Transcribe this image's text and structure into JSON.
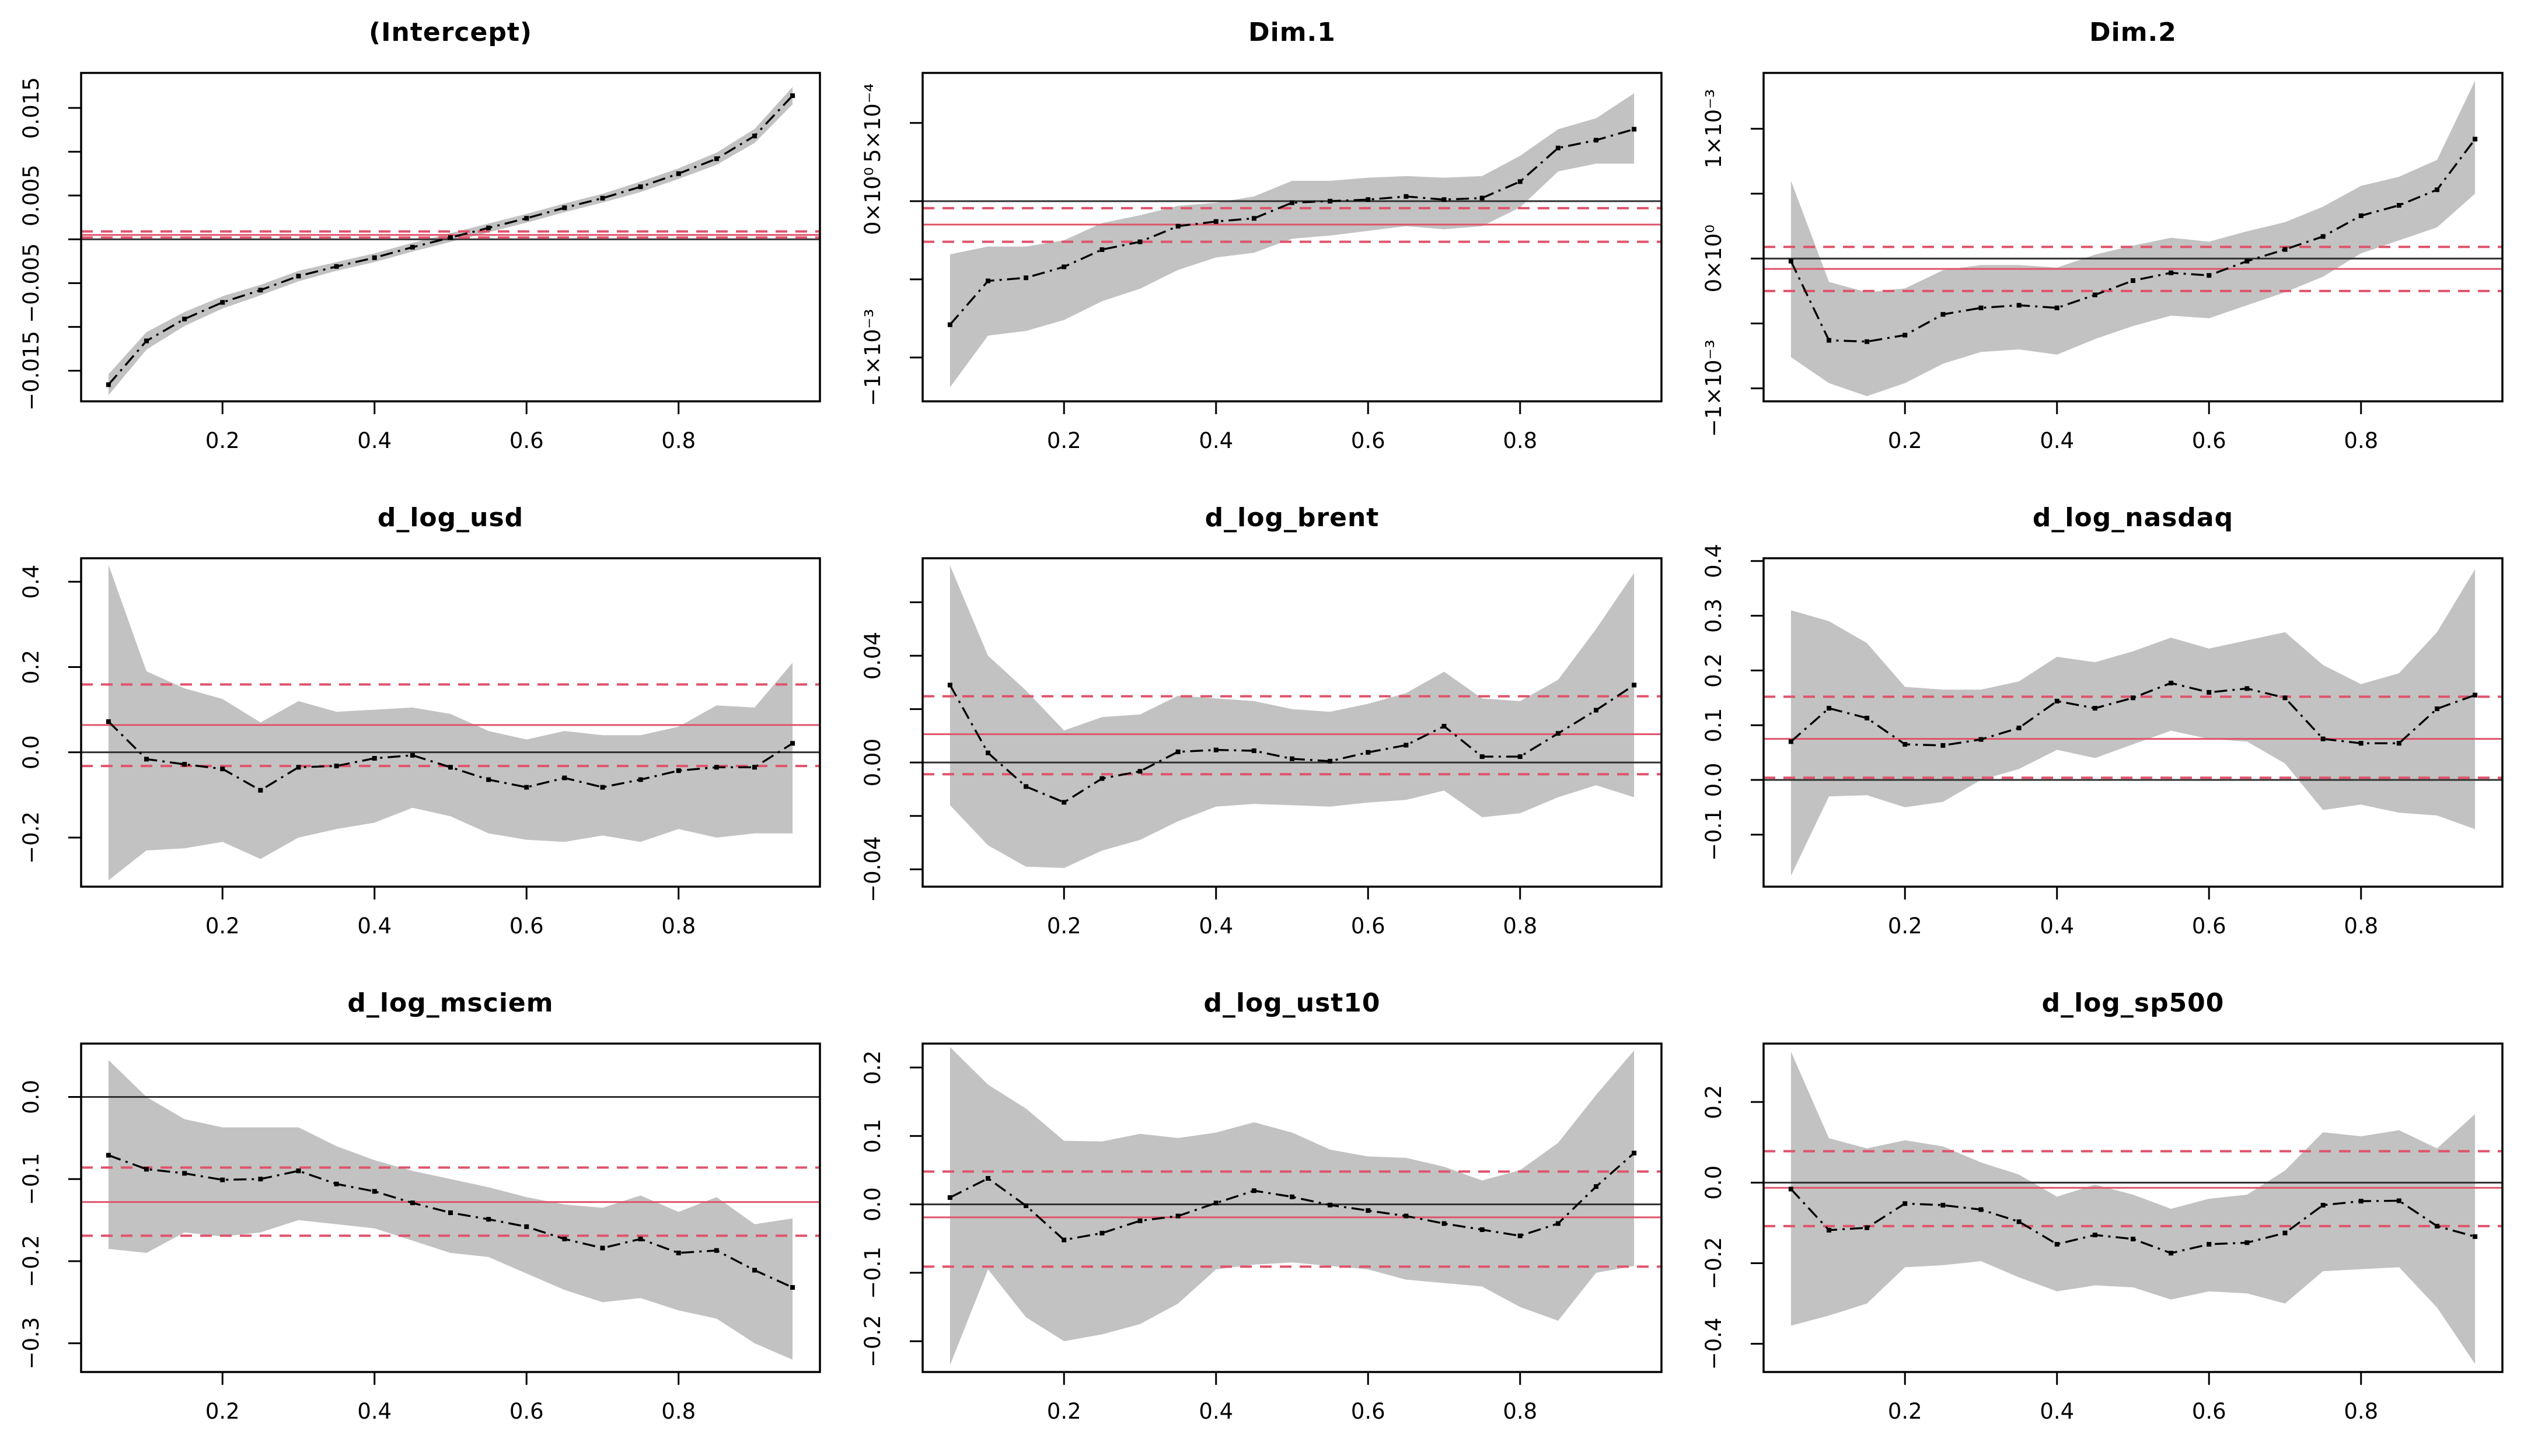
{
  "figure": {
    "background": "#ffffff",
    "grid": {
      "rows": 3,
      "cols": 3
    }
  },
  "style": {
    "band_color": "#c2c2c2",
    "curve_color": "#000000",
    "point_color": "#000000",
    "zero_line_color": "#303030",
    "ols_line_color": "#df536b",
    "ci_line_color": "#df536b",
    "axis_color": "#000000",
    "tick_label_color": "#000000",
    "title_color": "#000000"
  },
  "chart_data": {
    "type": "line",
    "description": "3x3 grid of quantile-regression coefficient plots: black dash-dot quantile estimates with gray confidence bands, black zero reference line, red solid OLS estimate with red dashed OLS confidence limits.",
    "x": [
      0.05,
      0.1,
      0.15,
      0.2,
      0.25,
      0.3,
      0.35,
      0.4,
      0.45,
      0.5,
      0.55,
      0.6,
      0.65,
      0.7,
      0.75,
      0.8,
      0.85,
      0.9,
      0.95
    ],
    "xlim": [
      0.014,
      0.986
    ],
    "x_ticks": [
      {
        "v": 0.2,
        "label": "0.2"
      },
      {
        "v": 0.4,
        "label": "0.4"
      },
      {
        "v": 0.6,
        "label": "0.6"
      },
      {
        "v": 0.8,
        "label": "0.8"
      }
    ],
    "legend": null,
    "grid_lines": false,
    "panels": [
      {
        "title": "(Intercept)",
        "ylim": [
          -0.0185,
          0.019
        ],
        "yticks": [
          {
            "v": 0.015,
            "label": "0.015"
          },
          {
            "v": 0.01,
            "label": ""
          },
          {
            "v": 0.005,
            "label": "0.005"
          },
          {
            "v": 0.0,
            "label": ""
          },
          {
            "v": -0.005,
            "label": "−0.005"
          },
          {
            "v": -0.01,
            "label": ""
          },
          {
            "v": -0.015,
            "label": "−0.015"
          }
        ],
        "zero": 0,
        "ols": 0.0005,
        "ci": [
          0.0002,
          0.0009
        ],
        "values": [
          -0.0166,
          -0.0116,
          -0.0091,
          -0.0072,
          -0.0058,
          -0.0042,
          -0.0031,
          -0.0021,
          -0.0009,
          0.0002,
          0.0013,
          0.0024,
          0.0036,
          0.0047,
          0.006,
          0.0075,
          0.0092,
          0.0118,
          0.0164
        ],
        "upper": [
          -0.0154,
          -0.0106,
          -0.0083,
          -0.0065,
          -0.0052,
          -0.0036,
          -0.0026,
          -0.0016,
          -0.0004,
          0.0007,
          0.0018,
          0.0029,
          0.0041,
          0.0052,
          0.0066,
          0.0081,
          0.0099,
          0.0126,
          0.0174
        ],
        "lower": [
          -0.0178,
          -0.0126,
          -0.0099,
          -0.0079,
          -0.0064,
          -0.0048,
          -0.0036,
          -0.0026,
          -0.0014,
          -0.0003,
          0.0008,
          0.0019,
          0.0031,
          0.0042,
          0.0054,
          0.0069,
          0.0085,
          0.011,
          0.0154
        ]
      },
      {
        "title": "Dim.1",
        "ylim": [
          -0.00128,
          0.00082
        ],
        "yticks": [
          {
            "v": 0.0005,
            "label": "5×10⁻⁴"
          },
          {
            "v": 0,
            "label": "0×10⁰"
          },
          {
            "v": -0.0005,
            "label": ""
          },
          {
            "v": -0.001,
            "label": "−1×10⁻³"
          }
        ],
        "zero": 0,
        "ols": -0.00015,
        "ci": [
          -0.00026,
          -4.5e-05
        ],
        "values": [
          -0.00079,
          -0.00051,
          -0.00049,
          -0.00042,
          -0.00031,
          -0.00026,
          -0.00016,
          -0.00013,
          -0.00011,
          -1e-05,
          0.0,
          1e-05,
          3e-05,
          1e-05,
          2e-05,
          0.000125,
          0.00034,
          0.00039,
          0.00046
        ],
        "upper": [
          -0.00034,
          -0.00029,
          -0.00029,
          -0.00025,
          -0.00014,
          -9e-05,
          -3e-05,
          -1e-05,
          3e-05,
          0.00013,
          0.00013,
          0.00015,
          0.00016,
          0.00015,
          0.00016,
          0.00029,
          0.00046,
          0.00053,
          0.00069
        ],
        "lower": [
          -0.00119,
          -0.00086,
          -0.00083,
          -0.00076,
          -0.00064,
          -0.00056,
          -0.00044,
          -0.00036,
          -0.00033,
          -0.00024,
          -0.00022,
          -0.00019,
          -0.00016,
          -0.00018,
          -0.00016,
          -4e-05,
          0.00019,
          0.00024,
          0.00024
        ]
      },
      {
        "title": "Dim.2",
        "ylim": [
          -0.0011,
          0.00143
        ],
        "yticks": [
          {
            "v": 0.001,
            "label": "1×10⁻³"
          },
          {
            "v": 0.0005,
            "label": ""
          },
          {
            "v": 0,
            "label": "0×10⁰"
          },
          {
            "v": -0.0005,
            "label": ""
          },
          {
            "v": -0.001,
            "label": "−1×10⁻³"
          }
        ],
        "zero": 0,
        "ols": -8e-05,
        "ci": [
          -0.00025,
          9e-05
        ],
        "values": [
          -2e-05,
          -0.00063,
          -0.00064,
          -0.00059,
          -0.00043,
          -0.00038,
          -0.00036,
          -0.00038,
          -0.00028,
          -0.00017,
          -0.00011,
          -0.00013,
          -2e-05,
          7e-05,
          0.00017,
          0.00033,
          0.00041,
          0.00053,
          0.00092
        ],
        "upper": [
          0.0006,
          -0.00018,
          -0.00026,
          -0.00023,
          -9e-05,
          -5e-05,
          -5e-05,
          -7e-05,
          3e-05,
          0.0001,
          0.00016,
          0.00013,
          0.00021,
          0.00028,
          0.0004,
          0.00056,
          0.00063,
          0.00076,
          0.00137
        ],
        "lower": [
          -0.00076,
          -0.00096,
          -0.00106,
          -0.00096,
          -0.00081,
          -0.00072,
          -0.0007,
          -0.00074,
          -0.00062,
          -0.00052,
          -0.00044,
          -0.00046,
          -0.00036,
          -0.00026,
          -0.00014,
          4e-05,
          0.00014,
          0.00024,
          0.0005
        ]
      },
      {
        "title": "d_log_usd",
        "ylim": [
          -0.315,
          0.455
        ],
        "yticks": [
          {
            "v": 0.4,
            "label": "0.4"
          },
          {
            "v": 0.2,
            "label": "0.2"
          },
          {
            "v": 0.0,
            "label": "0.0"
          },
          {
            "v": -0.2,
            "label": "−0.2"
          }
        ],
        "zero": 0,
        "ols": 0.064,
        "ci": [
          -0.032,
          0.159
        ],
        "values": [
          0.072,
          -0.016,
          -0.028,
          -0.039,
          -0.089,
          -0.035,
          -0.032,
          -0.014,
          -0.007,
          -0.035,
          -0.064,
          -0.082,
          -0.06,
          -0.082,
          -0.064,
          -0.043,
          -0.035,
          -0.035,
          0.021
        ],
        "upper": [
          0.44,
          0.19,
          0.15,
          0.125,
          0.07,
          0.12,
          0.095,
          0.1,
          0.105,
          0.09,
          0.05,
          0.03,
          0.05,
          0.04,
          0.04,
          0.06,
          0.11,
          0.105,
          0.21
        ],
        "lower": [
          -0.3,
          -0.23,
          -0.225,
          -0.21,
          -0.25,
          -0.2,
          -0.18,
          -0.165,
          -0.13,
          -0.15,
          -0.19,
          -0.205,
          -0.21,
          -0.195,
          -0.21,
          -0.18,
          -0.2,
          -0.19,
          -0.19
        ]
      },
      {
        "title": "d_log_brent",
        "ylim": [
          -0.0465,
          0.0765
        ],
        "yticks": [
          {
            "v": 0.06,
            "label": ""
          },
          {
            "v": 0.04,
            "label": "0.04"
          },
          {
            "v": 0.02,
            "label": ""
          },
          {
            "v": 0.0,
            "label": "0.00"
          },
          {
            "v": -0.02,
            "label": ""
          },
          {
            "v": -0.04,
            "label": "−0.04"
          }
        ],
        "zero": 0,
        "ols": 0.0106,
        "ci": [
          -0.0044,
          0.0248
        ],
        "values": [
          0.029,
          0.0036,
          -0.009,
          -0.0149,
          -0.006,
          -0.0033,
          0.004,
          0.0047,
          0.0044,
          0.0014,
          0.0005,
          0.0038,
          0.0065,
          0.0136,
          0.0022,
          0.0022,
          0.0109,
          0.0196,
          0.029
        ],
        "upper": [
          0.0738,
          0.04,
          0.027,
          0.012,
          0.017,
          0.018,
          0.025,
          0.024,
          0.023,
          0.02,
          0.019,
          0.022,
          0.026,
          0.034,
          0.024,
          0.023,
          0.031,
          0.05,
          0.071
        ],
        "lower": [
          -0.016,
          -0.031,
          -0.039,
          -0.0395,
          -0.033,
          -0.029,
          -0.022,
          -0.0165,
          -0.0155,
          -0.016,
          -0.0165,
          -0.015,
          -0.014,
          -0.0105,
          -0.0205,
          -0.019,
          -0.013,
          -0.0085,
          -0.013
        ]
      },
      {
        "title": "d_log_nasdaq",
        "ylim": [
          -0.195,
          0.405
        ],
        "yticks": [
          {
            "v": 0.4,
            "label": "0.4"
          },
          {
            "v": 0.3,
            "label": "0.3"
          },
          {
            "v": 0.2,
            "label": "0.2"
          },
          {
            "v": 0.1,
            "label": "0.1"
          },
          {
            "v": 0.0,
            "label": "0.0"
          },
          {
            "v": -0.1,
            "label": "−0.1"
          }
        ],
        "zero": 0,
        "ols": 0.075,
        "ci": [
          0.004,
          0.152
        ],
        "values": [
          0.07,
          0.131,
          0.113,
          0.065,
          0.063,
          0.074,
          0.095,
          0.144,
          0.131,
          0.15,
          0.177,
          0.16,
          0.167,
          0.15,
          0.075,
          0.067,
          0.067,
          0.13,
          0.155
        ],
        "upper": [
          0.31,
          0.29,
          0.25,
          0.17,
          0.165,
          0.165,
          0.18,
          0.225,
          0.215,
          0.235,
          0.26,
          0.24,
          0.255,
          0.27,
          0.21,
          0.175,
          0.195,
          0.27,
          0.385
        ],
        "lower": [
          -0.175,
          -0.03,
          -0.028,
          -0.05,
          -0.04,
          0.0,
          0.02,
          0.055,
          0.04,
          0.065,
          0.09,
          0.075,
          0.07,
          0.03,
          -0.055,
          -0.045,
          -0.06,
          -0.065,
          -0.09
        ]
      },
      {
        "title": "d_log_msciem",
        "ylim": [
          -0.335,
          0.065
        ],
        "yticks": [
          {
            "v": 0.0,
            "label": "0.0"
          },
          {
            "v": -0.1,
            "label": "−0.1"
          },
          {
            "v": -0.2,
            "label": "−0.2"
          },
          {
            "v": -0.3,
            "label": "−0.3"
          }
        ],
        "zero": 0,
        "ols": -0.128,
        "ci": [
          -0.169,
          -0.086
        ],
        "values": [
          -0.071,
          -0.088,
          -0.093,
          -0.101,
          -0.1,
          -0.09,
          -0.106,
          -0.115,
          -0.129,
          -0.141,
          -0.149,
          -0.158,
          -0.173,
          -0.184,
          -0.173,
          -0.19,
          -0.187,
          -0.211,
          -0.232
        ],
        "upper": [
          0.045,
          0.0,
          -0.027,
          -0.037,
          -0.037,
          -0.037,
          -0.06,
          -0.077,
          -0.09,
          -0.1,
          -0.11,
          -0.122,
          -0.131,
          -0.135,
          -0.12,
          -0.14,
          -0.122,
          -0.155,
          -0.148
        ],
        "lower": [
          -0.185,
          -0.19,
          -0.165,
          -0.17,
          -0.165,
          -0.15,
          -0.155,
          -0.16,
          -0.175,
          -0.19,
          -0.195,
          -0.215,
          -0.235,
          -0.25,
          -0.245,
          -0.26,
          -0.27,
          -0.3,
          -0.32
        ]
      },
      {
        "title": "d_log_ust10",
        "ylim": [
          -0.245,
          0.235
        ],
        "yticks": [
          {
            "v": 0.2,
            "label": "0.2"
          },
          {
            "v": 0.1,
            "label": "0.1"
          },
          {
            "v": 0.0,
            "label": "0.0"
          },
          {
            "v": -0.1,
            "label": "−0.1"
          },
          {
            "v": -0.2,
            "label": "−0.2"
          }
        ],
        "zero": 0,
        "ols": -0.019,
        "ci": [
          -0.091,
          0.048
        ],
        "values": [
          0.01,
          0.038,
          -0.002,
          -0.052,
          -0.042,
          -0.024,
          -0.017,
          0.002,
          0.02,
          0.011,
          -0.001,
          -0.009,
          -0.017,
          -0.028,
          -0.037,
          -0.046,
          -0.028,
          0.026,
          0.075
        ],
        "upper": [
          0.23,
          0.175,
          0.14,
          0.093,
          0.092,
          0.103,
          0.097,
          0.105,
          0.12,
          0.105,
          0.08,
          0.07,
          0.068,
          0.055,
          0.035,
          0.05,
          0.09,
          0.16,
          0.225
        ],
        "lower": [
          -0.235,
          -0.095,
          -0.165,
          -0.2,
          -0.19,
          -0.175,
          -0.145,
          -0.095,
          -0.088,
          -0.085,
          -0.09,
          -0.095,
          -0.11,
          -0.115,
          -0.12,
          -0.15,
          -0.17,
          -0.1,
          -0.09
        ]
      },
      {
        "title": "d_log_sp500",
        "ylim": [
          -0.47,
          0.345
        ],
        "yticks": [
          {
            "v": 0.2,
            "label": "0.2"
          },
          {
            "v": 0.0,
            "label": "0.0"
          },
          {
            "v": -0.2,
            "label": "−0.2"
          },
          {
            "v": -0.4,
            "label": "−0.4"
          }
        ],
        "zero": 0,
        "ols": -0.013,
        "ci": [
          -0.108,
          0.078
        ],
        "values": [
          -0.016,
          -0.118,
          -0.112,
          -0.052,
          -0.056,
          -0.067,
          -0.097,
          -0.153,
          -0.13,
          -0.14,
          -0.175,
          -0.153,
          -0.149,
          -0.125,
          -0.056,
          -0.046,
          -0.045,
          -0.108,
          -0.134
        ],
        "upper": [
          0.325,
          0.11,
          0.085,
          0.105,
          0.09,
          0.05,
          0.02,
          -0.035,
          -0.005,
          -0.03,
          -0.065,
          -0.04,
          -0.03,
          0.03,
          0.125,
          0.115,
          0.13,
          0.085,
          0.17
        ],
        "lower": [
          -0.355,
          -0.33,
          -0.3,
          -0.21,
          -0.205,
          -0.195,
          -0.235,
          -0.27,
          -0.255,
          -0.26,
          -0.29,
          -0.27,
          -0.275,
          -0.3,
          -0.22,
          -0.215,
          -0.21,
          -0.31,
          -0.45
        ]
      }
    ]
  }
}
